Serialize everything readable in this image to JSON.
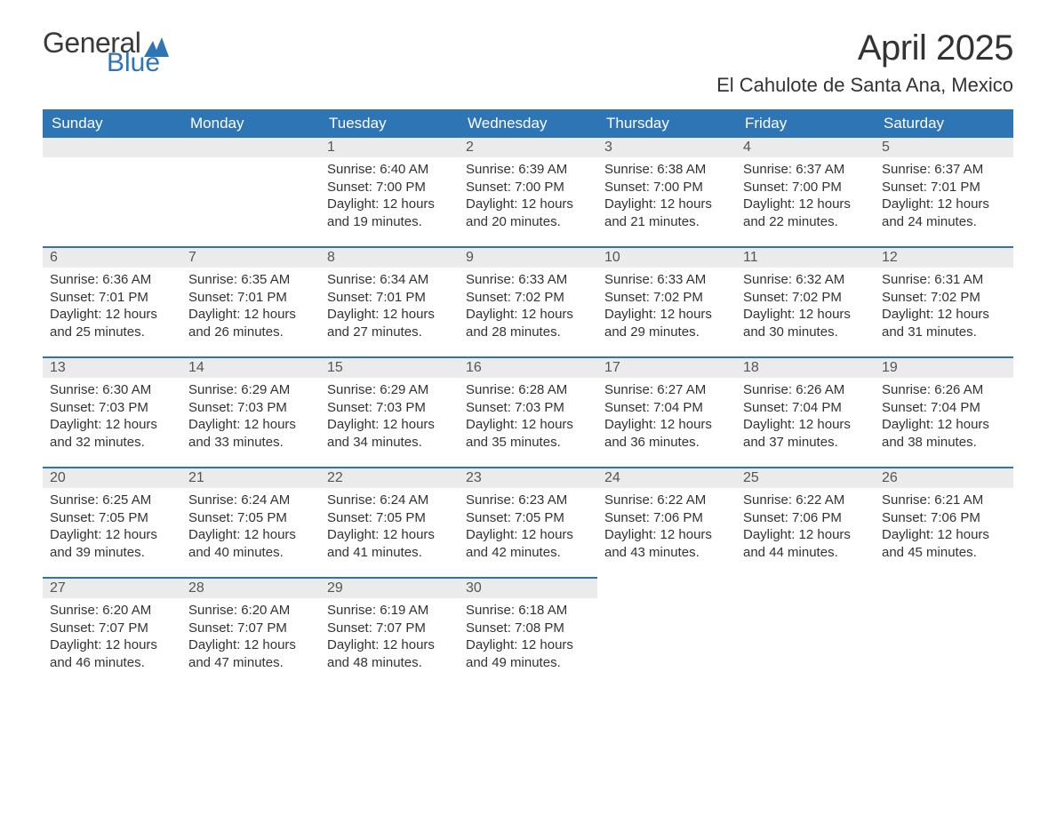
{
  "brand": {
    "word1": "General",
    "word2": "Blue",
    "color_general": "#3a3a3a",
    "color_blue": "#2e75b6"
  },
  "title": "April 2025",
  "location": "El Cahulote de Santa Ana, Mexico",
  "colors": {
    "header_bg": "#2e75b6",
    "header_text": "#ffffff",
    "daynum_bg": "#ebebeb",
    "row_border": "#2e75b6",
    "text": "#333333",
    "background": "#ffffff"
  },
  "typography": {
    "title_fontsize": 40,
    "location_fontsize": 22,
    "weekday_fontsize": 17,
    "daynum_fontsize": 16,
    "body_fontsize": 15,
    "font_family": "Segoe UI"
  },
  "calendar": {
    "type": "table",
    "columns": [
      "Sunday",
      "Monday",
      "Tuesday",
      "Wednesday",
      "Thursday",
      "Friday",
      "Saturday"
    ],
    "lead_blanks": 2,
    "days": [
      {
        "n": 1,
        "sunrise": "6:40 AM",
        "sunset": "7:00 PM",
        "daylight": "12 hours and 19 minutes."
      },
      {
        "n": 2,
        "sunrise": "6:39 AM",
        "sunset": "7:00 PM",
        "daylight": "12 hours and 20 minutes."
      },
      {
        "n": 3,
        "sunrise": "6:38 AM",
        "sunset": "7:00 PM",
        "daylight": "12 hours and 21 minutes."
      },
      {
        "n": 4,
        "sunrise": "6:37 AM",
        "sunset": "7:00 PM",
        "daylight": "12 hours and 22 minutes."
      },
      {
        "n": 5,
        "sunrise": "6:37 AM",
        "sunset": "7:01 PM",
        "daylight": "12 hours and 24 minutes."
      },
      {
        "n": 6,
        "sunrise": "6:36 AM",
        "sunset": "7:01 PM",
        "daylight": "12 hours and 25 minutes."
      },
      {
        "n": 7,
        "sunrise": "6:35 AM",
        "sunset": "7:01 PM",
        "daylight": "12 hours and 26 minutes."
      },
      {
        "n": 8,
        "sunrise": "6:34 AM",
        "sunset": "7:01 PM",
        "daylight": "12 hours and 27 minutes."
      },
      {
        "n": 9,
        "sunrise": "6:33 AM",
        "sunset": "7:02 PM",
        "daylight": "12 hours and 28 minutes."
      },
      {
        "n": 10,
        "sunrise": "6:33 AM",
        "sunset": "7:02 PM",
        "daylight": "12 hours and 29 minutes."
      },
      {
        "n": 11,
        "sunrise": "6:32 AM",
        "sunset": "7:02 PM",
        "daylight": "12 hours and 30 minutes."
      },
      {
        "n": 12,
        "sunrise": "6:31 AM",
        "sunset": "7:02 PM",
        "daylight": "12 hours and 31 minutes."
      },
      {
        "n": 13,
        "sunrise": "6:30 AM",
        "sunset": "7:03 PM",
        "daylight": "12 hours and 32 minutes."
      },
      {
        "n": 14,
        "sunrise": "6:29 AM",
        "sunset": "7:03 PM",
        "daylight": "12 hours and 33 minutes."
      },
      {
        "n": 15,
        "sunrise": "6:29 AM",
        "sunset": "7:03 PM",
        "daylight": "12 hours and 34 minutes."
      },
      {
        "n": 16,
        "sunrise": "6:28 AM",
        "sunset": "7:03 PM",
        "daylight": "12 hours and 35 minutes."
      },
      {
        "n": 17,
        "sunrise": "6:27 AM",
        "sunset": "7:04 PM",
        "daylight": "12 hours and 36 minutes."
      },
      {
        "n": 18,
        "sunrise": "6:26 AM",
        "sunset": "7:04 PM",
        "daylight": "12 hours and 37 minutes."
      },
      {
        "n": 19,
        "sunrise": "6:26 AM",
        "sunset": "7:04 PM",
        "daylight": "12 hours and 38 minutes."
      },
      {
        "n": 20,
        "sunrise": "6:25 AM",
        "sunset": "7:05 PM",
        "daylight": "12 hours and 39 minutes."
      },
      {
        "n": 21,
        "sunrise": "6:24 AM",
        "sunset": "7:05 PM",
        "daylight": "12 hours and 40 minutes."
      },
      {
        "n": 22,
        "sunrise": "6:24 AM",
        "sunset": "7:05 PM",
        "daylight": "12 hours and 41 minutes."
      },
      {
        "n": 23,
        "sunrise": "6:23 AM",
        "sunset": "7:05 PM",
        "daylight": "12 hours and 42 minutes."
      },
      {
        "n": 24,
        "sunrise": "6:22 AM",
        "sunset": "7:06 PM",
        "daylight": "12 hours and 43 minutes."
      },
      {
        "n": 25,
        "sunrise": "6:22 AM",
        "sunset": "7:06 PM",
        "daylight": "12 hours and 44 minutes."
      },
      {
        "n": 26,
        "sunrise": "6:21 AM",
        "sunset": "7:06 PM",
        "daylight": "12 hours and 45 minutes."
      },
      {
        "n": 27,
        "sunrise": "6:20 AM",
        "sunset": "7:07 PM",
        "daylight": "12 hours and 46 minutes."
      },
      {
        "n": 28,
        "sunrise": "6:20 AM",
        "sunset": "7:07 PM",
        "daylight": "12 hours and 47 minutes."
      },
      {
        "n": 29,
        "sunrise": "6:19 AM",
        "sunset": "7:07 PM",
        "daylight": "12 hours and 48 minutes."
      },
      {
        "n": 30,
        "sunrise": "6:18 AM",
        "sunset": "7:08 PM",
        "daylight": "12 hours and 49 minutes."
      }
    ],
    "labels": {
      "sunrise": "Sunrise:",
      "sunset": "Sunset:",
      "daylight": "Daylight:"
    }
  }
}
